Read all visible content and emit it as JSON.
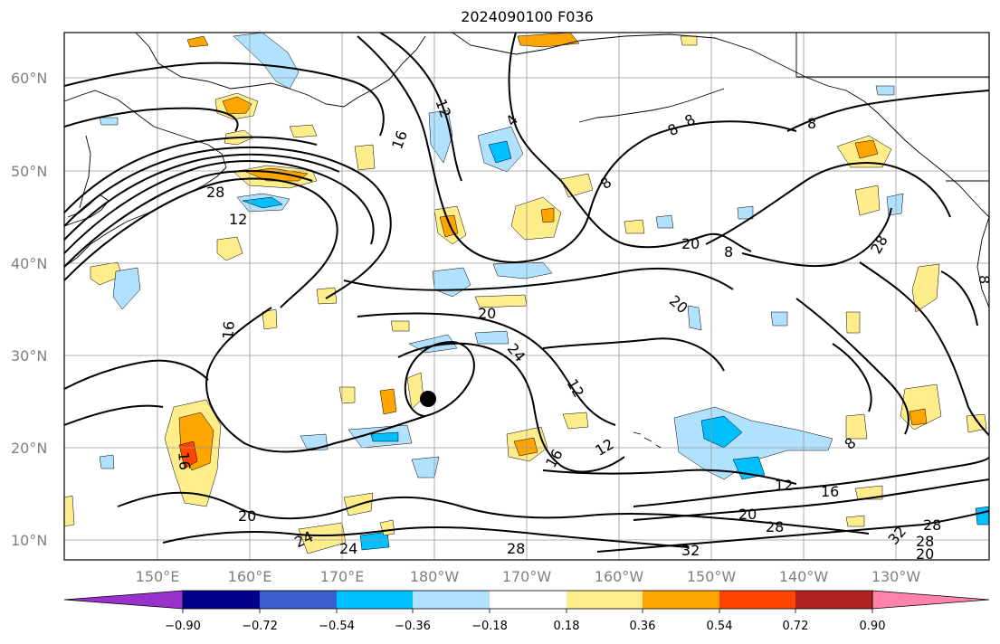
{
  "title": "2024090100 F036",
  "lat_ticks": [
    "10°N",
    "20°N",
    "30°N",
    "40°N",
    "50°N",
    "60°N"
  ],
  "lon_ticks": [
    "150°E",
    "160°E",
    "170°E",
    "180°W",
    "170°W",
    "160°W",
    "150°W",
    "140°W",
    "130°W"
  ],
  "colorbar": {
    "tick_labels": [
      "−0.90",
      "−0.72",
      "−0.54",
      "−0.36",
      "−0.18",
      "0.18",
      "0.36",
      "0.54",
      "0.72",
      "0.90"
    ],
    "colors": [
      "#9932cc",
      "#00008b",
      "#3a5fcd",
      "#00bfff",
      "#b0e2ff",
      "#ffffff",
      "#ffec8b",
      "#ffa500",
      "#ff4500",
      "#b22222",
      "#ff82ab"
    ]
  },
  "contour_labels": [
    "28",
    "12",
    "16",
    "12",
    "4",
    "8",
    "8",
    "8",
    "8",
    "20",
    "8",
    "16",
    "20",
    "24",
    "20",
    "12",
    "12",
    "16",
    "8",
    "12",
    "16",
    "20",
    "28",
    "32",
    "28",
    "20",
    "24",
    "24",
    "28",
    "32",
    "28",
    "20",
    "16",
    "28",
    "8",
    "4",
    "8"
  ],
  "marker": "storm-center"
}
